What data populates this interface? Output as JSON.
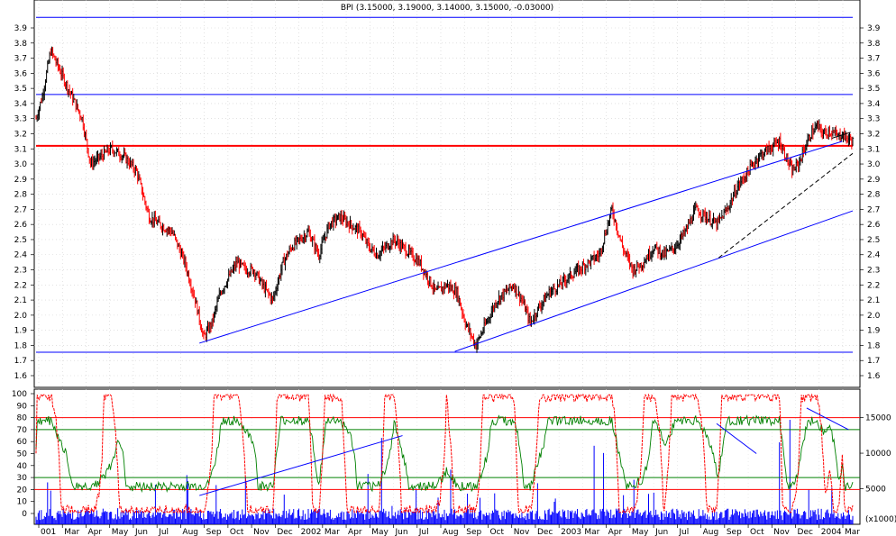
{
  "chart_data": [
    {
      "type": "line",
      "panel": "price",
      "title": "BPI (3.15000, 3.19000, 3.14000, 3.15000, -0.03000)",
      "style": "ohlc bars, black up / red down",
      "ylim": [
        1.5,
        4.0
      ],
      "y_ticks_left": [
        "3.9",
        "3.8",
        "3.7",
        "3.6",
        "3.5",
        "3.4",
        "3.3",
        "3.2",
        "3.1",
        "3.0",
        "2.9",
        "2.8",
        "2.7",
        "2.6",
        "2.5",
        "2.4",
        "2.3",
        "2.2",
        "2.1",
        "2.0",
        "1.9",
        "1.8",
        "1.7",
        "1.6"
      ],
      "y_ticks_right": [
        "3.9",
        "3.8",
        "3.7",
        "3.6",
        "3.5",
        "3.4",
        "3.3",
        "3.2",
        "3.1",
        "3.0",
        "2.9",
        "2.8",
        "2.7",
        "2.6",
        "2.5",
        "2.4",
        "2.3",
        "2.2",
        "2.1",
        "2.0",
        "1.9",
        "1.8",
        "1.7",
        "1.6"
      ],
      "x_ticks": [
        "001",
        "Mar",
        "Apr",
        "May",
        "Jun",
        "Jul",
        "Aug",
        "Sep",
        "Oct",
        "Nov",
        "Dec",
        "2002",
        "Mar",
        "Apr",
        "May",
        "Jun",
        "Jul",
        "Aug",
        "Sep",
        "Oct",
        "Nov",
        "Dec",
        "2003",
        "Mar",
        "Apr",
        "May",
        "Jun",
        "Jul",
        "Aug",
        "Sep",
        "Oct",
        "Nov",
        "Dec",
        "2004",
        "Mar"
      ],
      "x_index_range": [
        0,
        780
      ],
      "close_series": {
        "x": [
          0,
          6,
          14,
          24,
          34,
          44,
          52,
          62,
          72,
          84,
          96,
          108,
          118,
          130,
          142,
          152,
          160,
          168,
          176,
          184,
          192,
          200,
          208,
          216,
          226,
          236,
          244,
          252,
          260,
          270,
          280,
          290,
          300,
          310,
          318,
          326,
          334,
          342,
          350,
          358,
          366,
          374,
          382,
          392,
          402,
          410,
          420,
          430,
          440,
          448,
          456,
          464,
          472,
          480,
          490,
          500,
          508,
          518,
          528,
          538,
          550,
          560,
          570,
          580,
          590,
          600,
          610,
          620,
          630,
          640,
          650,
          660,
          670,
          680,
          690,
          700,
          710,
          716,
          722,
          728,
          734,
          740,
          746,
          752,
          758,
          762,
          766,
          770,
          774,
          778,
          780
        ],
        "y": [
          3.3,
          3.45,
          3.75,
          3.6,
          3.45,
          3.3,
          3.0,
          3.05,
          3.1,
          3.05,
          2.95,
          2.65,
          2.6,
          2.55,
          2.35,
          2.1,
          1.85,
          1.95,
          2.15,
          2.25,
          2.35,
          2.3,
          2.3,
          2.2,
          2.1,
          2.35,
          2.45,
          2.5,
          2.55,
          2.4,
          2.6,
          2.65,
          2.6,
          2.55,
          2.45,
          2.4,
          2.45,
          2.5,
          2.45,
          2.4,
          2.35,
          2.25,
          2.15,
          2.2,
          2.15,
          1.95,
          1.8,
          1.95,
          2.1,
          2.15,
          2.2,
          2.1,
          1.95,
          2.05,
          2.15,
          2.2,
          2.25,
          2.3,
          2.35,
          2.4,
          2.7,
          2.45,
          2.3,
          2.35,
          2.45,
          2.4,
          2.45,
          2.55,
          2.7,
          2.65,
          2.6,
          2.7,
          2.85,
          2.95,
          3.05,
          3.1,
          3.15,
          3.05,
          2.95,
          3.0,
          3.1,
          3.2,
          3.25,
          3.2,
          3.22,
          3.2,
          3.18,
          3.2,
          3.17,
          3.16,
          3.15
        ]
      },
      "lines": [
        {
          "name": "",
          "color": "#ff0000",
          "from": [
            0,
            3.12
          ],
          "to": [
            780,
            3.12
          ]
        },
        {
          "name": "",
          "color": "#0000ff",
          "from": [
            0,
            3.97
          ],
          "to": [
            780,
            3.97
          ]
        },
        {
          "name": "",
          "color": "#0000ff",
          "from": [
            0,
            3.46
          ],
          "to": [
            780,
            3.46
          ]
        },
        {
          "name": "",
          "color": "#0000ff",
          "from": [
            0,
            1.755
          ],
          "to": [
            780,
            1.755
          ]
        },
        {
          "name": "",
          "color": "#0000ff",
          "from": [
            156,
            1.815
          ],
          "to": [
            770,
            3.15
          ]
        },
        {
          "name": "",
          "color": "#0000ff",
          "from": [
            400,
            1.76
          ],
          "to": [
            780,
            2.69
          ]
        },
        {
          "name": "",
          "color": "#000000",
          "dash": true,
          "from": [
            652,
            2.38
          ],
          "to": [
            780,
            3.07
          ]
        },
        {
          "name": "",
          "color": "#000000",
          "from": [
            760,
            3.17
          ],
          "to": [
            778,
            3.21
          ]
        }
      ]
    },
    {
      "type": "line",
      "panel": "oscillator",
      "ylim": [
        0,
        100
      ],
      "y_ticks_left": [
        "100",
        "90",
        "80",
        "70",
        "60",
        "50",
        "40",
        "30",
        "20",
        "10",
        "0"
      ],
      "y_ticks_right": [
        "15000",
        "10000",
        "5000"
      ],
      "y_axis_label": "(x1000)",
      "levels": [
        {
          "value": 80,
          "color": "#ff0000"
        },
        {
          "value": 70,
          "color": "#008000"
        },
        {
          "value": 30,
          "color": "#008000"
        },
        {
          "value": 20,
          "color": "#ff0000"
        }
      ],
      "series": [
        {
          "name": "",
          "color": "#ff0000",
          "dash": true,
          "role": "stochastic %D"
        },
        {
          "name": "",
          "color": "#008000",
          "role": "RSI"
        }
      ],
      "volume_color": "#0000ff",
      "trendlines": [
        {
          "color": "#0000ff",
          "from": [
            156,
            15
          ],
          "to": [
            350,
            65
          ]
        },
        {
          "color": "#0000ff",
          "from": [
            650,
            75
          ],
          "to": [
            688,
            50
          ]
        },
        {
          "color": "#0000ff",
          "from": [
            736,
            88
          ],
          "to": [
            776,
            70
          ]
        }
      ]
    }
  ]
}
